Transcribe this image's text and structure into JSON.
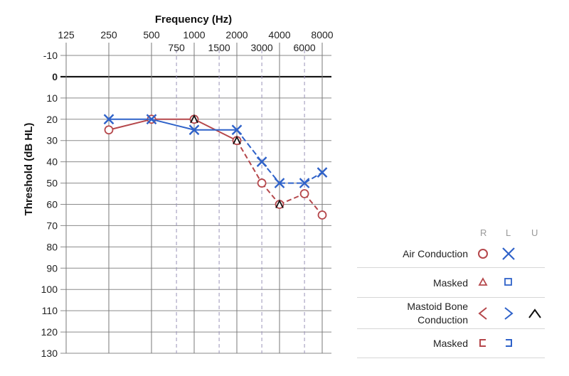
{
  "chart_data": {
    "type": "line",
    "title": "Frequency (Hz)",
    "ylabel": "Threshold (dB HL)",
    "x_ticks_major": [
      "125",
      "250",
      "500",
      "1000",
      "2000",
      "4000",
      "8000"
    ],
    "x_ticks_minor": [
      "750",
      "1500",
      "3000",
      "6000"
    ],
    "y_ticks": [
      "-10",
      "0",
      "10",
      "20",
      "30",
      "40",
      "50",
      "60",
      "70",
      "80",
      "90",
      "100",
      "110",
      "120",
      "130"
    ],
    "ylim": [
      -10,
      130
    ],
    "y_inverted": true,
    "x_scale": "log2",
    "series": [
      {
        "name": "Air Conduction R",
        "color": "#b5474b",
        "points": [
          [
            250,
            25
          ],
          [
            500,
            20
          ],
          [
            1000,
            20
          ],
          [
            2000,
            30
          ],
          [
            3000,
            50
          ],
          [
            4000,
            60
          ],
          [
            6000,
            55
          ],
          [
            8000,
            65
          ]
        ]
      },
      {
        "name": "Air Conduction L",
        "color": "#2f62c9",
        "points": [
          [
            250,
            20
          ],
          [
            500,
            20
          ],
          [
            1000,
            25
          ],
          [
            2000,
            25
          ],
          [
            3000,
            40
          ],
          [
            4000,
            50
          ],
          [
            6000,
            50
          ],
          [
            8000,
            45
          ]
        ]
      },
      {
        "name": "Mastoid Bone Conduction U",
        "color": "#111111",
        "points": [
          [
            1000,
            20
          ],
          [
            2000,
            30
          ],
          [
            4000,
            60
          ]
        ]
      }
    ]
  },
  "legend": {
    "headers": {
      "r": "R",
      "l": "L",
      "u": "U"
    },
    "rows": [
      {
        "label": "Air Conduction",
        "r_icon": "circle-icon",
        "l_icon": "x-icon"
      },
      {
        "label": "Masked",
        "r_icon": "triangle-icon",
        "l_icon": "square-icon"
      },
      {
        "label": "Mastoid Bone Conduction",
        "r_icon": "less-than-icon",
        "l_icon": "greater-than-icon",
        "u_icon": "caret-icon"
      },
      {
        "label": "Masked",
        "r_icon": "left-bracket-icon",
        "l_icon": "right-bracket-icon"
      }
    ],
    "colors": {
      "r": "#b5474b",
      "l": "#2f62c9",
      "u": "#111111"
    }
  }
}
